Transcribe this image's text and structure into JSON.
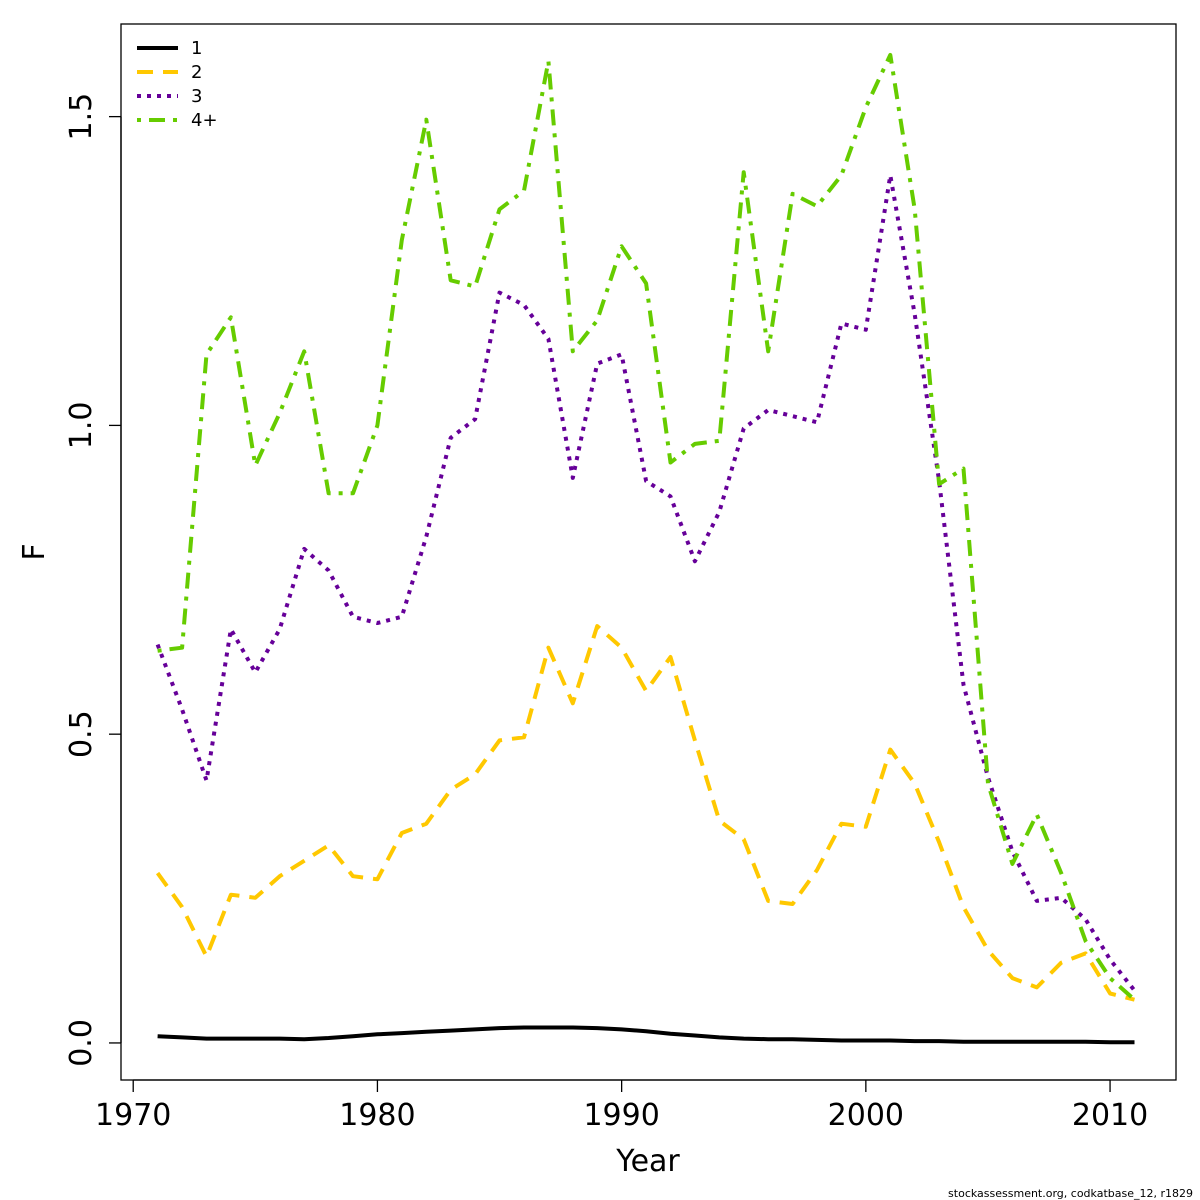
{
  "chart_data": {
    "type": "line",
    "xlabel": "Year",
    "ylabel": "F",
    "xlim": [
      1969.5,
      2012.7
    ],
    "ylim": [
      -0.06,
      1.65
    ],
    "x_ticks": [
      1970,
      1980,
      1990,
      2000,
      2010
    ],
    "y_ticks": [
      0.0,
      0.5,
      1.0,
      1.5
    ],
    "x_tick_labels": [
      "1970",
      "1980",
      "1990",
      "2000",
      "2010"
    ],
    "y_tick_labels": [
      "0.0",
      "0.5",
      "1.0",
      "1.5"
    ],
    "legend_position": "top-left",
    "x": [
      1971,
      1972,
      1973,
      1974,
      1975,
      1976,
      1977,
      1978,
      1979,
      1980,
      1981,
      1982,
      1983,
      1984,
      1985,
      1986,
      1987,
      1988,
      1989,
      1990,
      1991,
      1992,
      1993,
      1994,
      1995,
      1996,
      1997,
      1998,
      1999,
      2000,
      2001,
      2002,
      2003,
      2004,
      2005,
      2006,
      2007,
      2008,
      2009,
      2010,
      2011
    ],
    "series": [
      {
        "name": "1",
        "color": "#000000",
        "dash": "solid",
        "values": [
          0.011,
          0.009,
          0.007,
          0.007,
          0.007,
          0.007,
          0.006,
          0.008,
          0.011,
          0.014,
          0.016,
          0.018,
          0.02,
          0.022,
          0.024,
          0.025,
          0.025,
          0.025,
          0.024,
          0.022,
          0.019,
          0.015,
          0.012,
          0.009,
          0.007,
          0.006,
          0.006,
          0.005,
          0.004,
          0.004,
          0.004,
          0.003,
          0.003,
          0.002,
          0.002,
          0.002,
          0.002,
          0.002,
          0.002,
          0.001,
          0.001
        ]
      },
      {
        "name": "2",
        "color": "#ffc800",
        "dash": "dashed",
        "values": [
          0.275,
          0.22,
          0.14,
          0.24,
          0.235,
          0.27,
          0.295,
          0.32,
          0.27,
          0.265,
          0.34,
          0.355,
          0.41,
          0.435,
          0.49,
          0.495,
          0.64,
          0.55,
          0.675,
          0.64,
          0.57,
          0.625,
          0.49,
          0.36,
          0.33,
          0.23,
          0.225,
          0.28,
          0.355,
          0.35,
          0.475,
          0.42,
          0.325,
          0.22,
          0.15,
          0.105,
          0.09,
          0.13,
          0.145,
          0.08,
          0.07
        ]
      },
      {
        "name": "3",
        "color": "#660099",
        "dash": "dotted",
        "values": [
          0.645,
          0.54,
          0.425,
          0.67,
          0.6,
          0.67,
          0.8,
          0.765,
          0.69,
          0.68,
          0.69,
          0.82,
          0.98,
          1.01,
          1.215,
          1.195,
          1.14,
          0.915,
          1.1,
          1.115,
          0.91,
          0.885,
          0.78,
          0.86,
          0.995,
          1.025,
          1.015,
          1.005,
          1.165,
          1.155,
          1.405,
          1.18,
          0.91,
          0.58,
          0.43,
          0.31,
          0.23,
          0.235,
          0.2,
          0.135,
          0.085
        ]
      },
      {
        "name": "4+",
        "color": "#66cc00",
        "dash": "dotdash",
        "values": [
          0.635,
          0.64,
          1.115,
          1.175,
          0.935,
          1.02,
          1.12,
          0.89,
          0.89,
          1.0,
          1.3,
          1.495,
          1.235,
          1.225,
          1.35,
          1.38,
          1.59,
          1.12,
          1.17,
          1.29,
          1.23,
          0.94,
          0.97,
          0.975,
          1.41,
          1.12,
          1.375,
          1.355,
          1.405,
          1.515,
          1.6,
          1.35,
          0.905,
          0.93,
          0.42,
          0.29,
          0.37,
          0.275,
          0.165,
          0.105,
          0.07
        ]
      }
    ]
  },
  "footer": {
    "credit": "stockassessment.org, codkatbase_12, r1829"
  }
}
